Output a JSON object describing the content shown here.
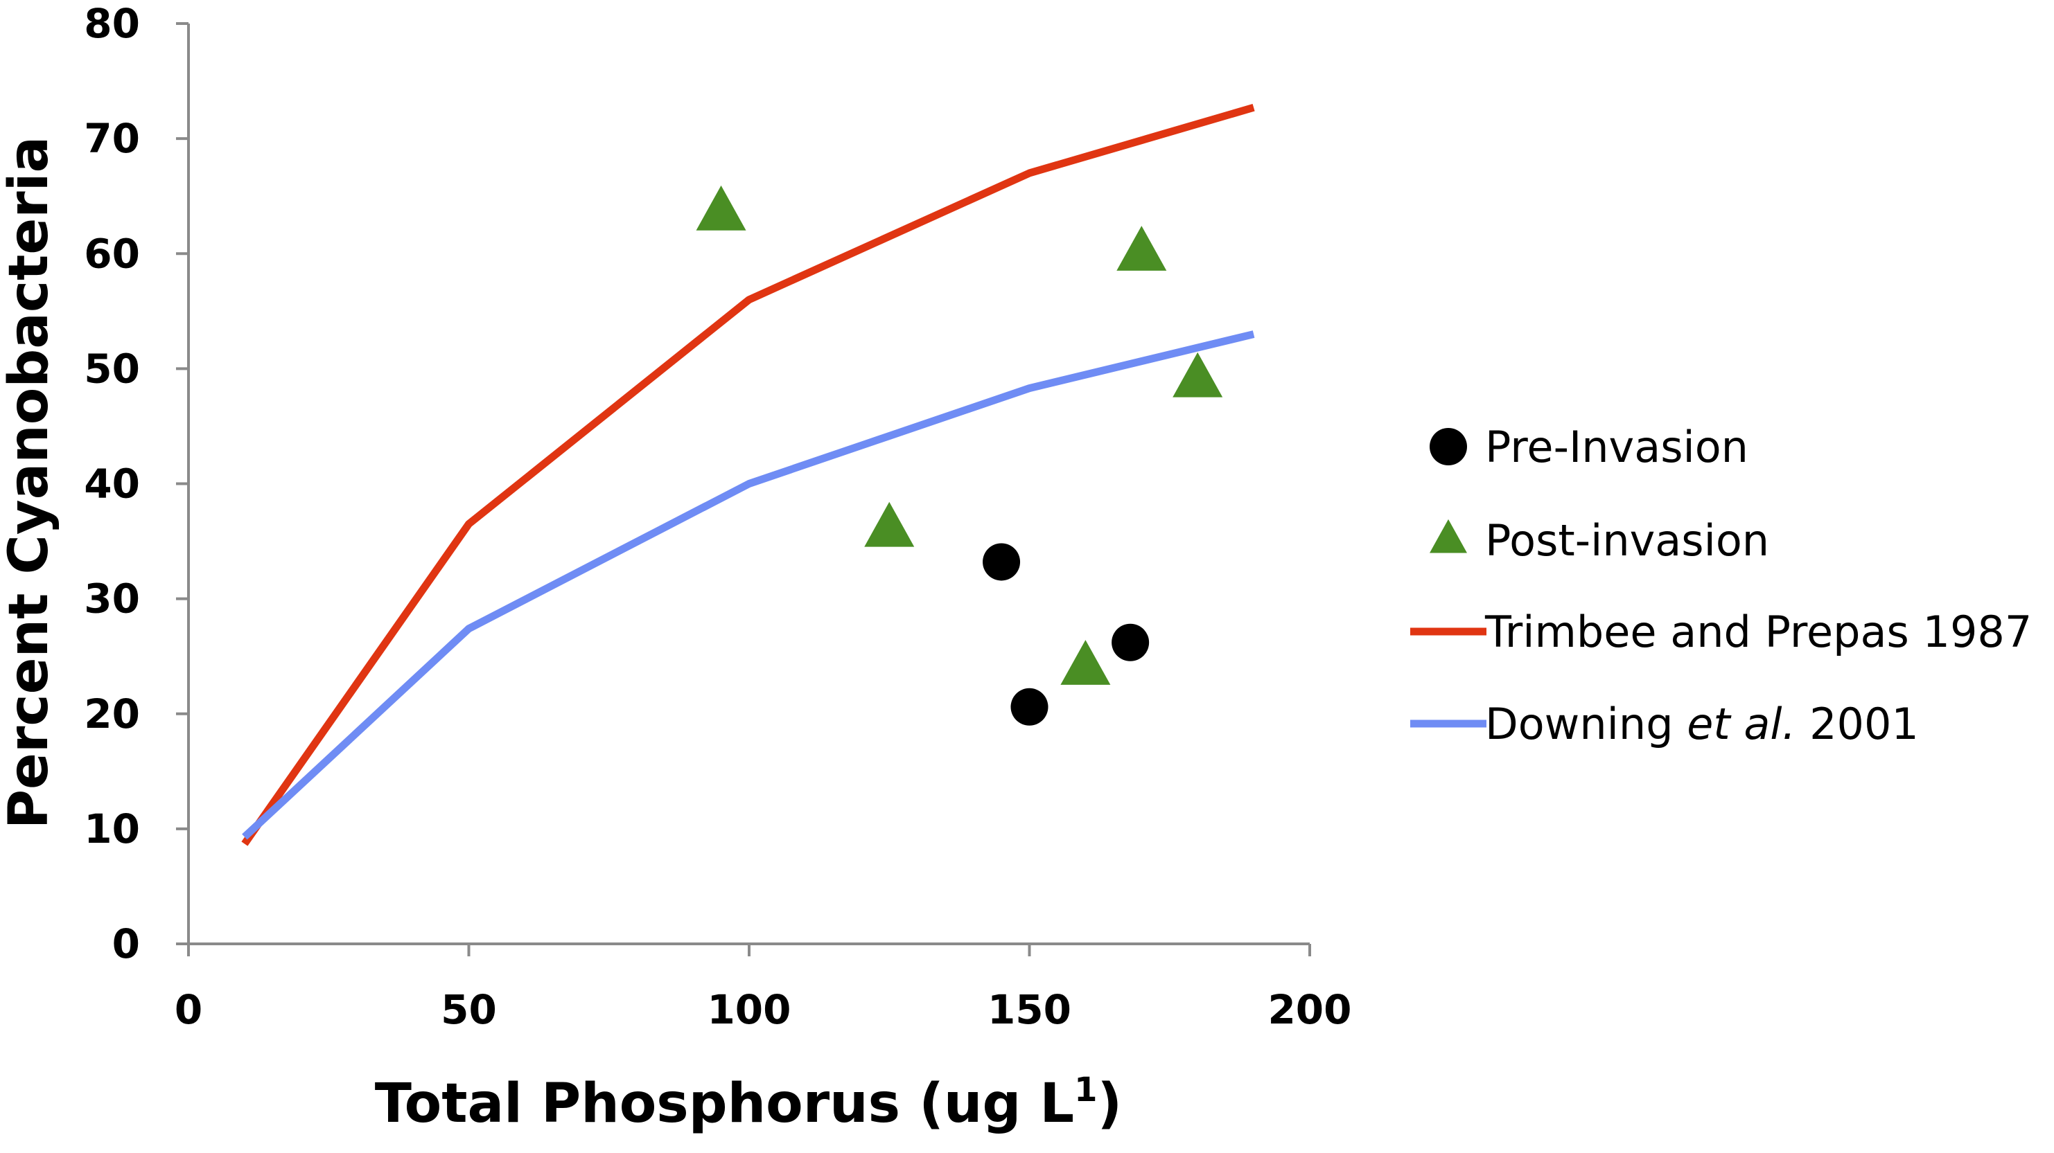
{
  "chart_data": {
    "type": "scatter",
    "xlabel": "Total Phosphorus (ug L",
    "xlabel_sup": "1",
    "xlabel_close": ")",
    "ylabel": "Percent Cyanobacteria",
    "xlim": [
      0,
      200
    ],
    "ylim": [
      0,
      80
    ],
    "xticks": [
      0,
      50,
      100,
      150,
      200
    ],
    "yticks": [
      0,
      10,
      20,
      30,
      40,
      50,
      60,
      70,
      80
    ],
    "legend_position": "right",
    "series": [
      {
        "name": "Pre-Invasion",
        "kind": "points",
        "marker": "circle",
        "color": "#000000",
        "x": [
          145,
          150,
          168
        ],
        "y": [
          33.2,
          20.6,
          26.2
        ]
      },
      {
        "name": "Post-invasion",
        "kind": "points",
        "marker": "triangle",
        "color": "#4a8e24",
        "x": [
          95,
          125,
          160,
          170,
          180
        ],
        "y": [
          63.5,
          36,
          24,
          60,
          49
        ]
      },
      {
        "name": "Trimbee and Prepas 1987",
        "kind": "line",
        "color": "#e03512",
        "x": [
          10,
          50,
          100,
          150,
          190
        ],
        "y": [
          8.7,
          36.5,
          56,
          67,
          72.7
        ]
      },
      {
        "name": "Downing et al. 2001",
        "name_parts": [
          "Downing ",
          "et al.",
          " 2001"
        ],
        "kind": "line",
        "color": "#6f8cf4",
        "x": [
          10,
          50,
          100,
          150,
          190
        ],
        "y": [
          9.3,
          27.4,
          40,
          48.3,
          53
        ]
      }
    ]
  }
}
